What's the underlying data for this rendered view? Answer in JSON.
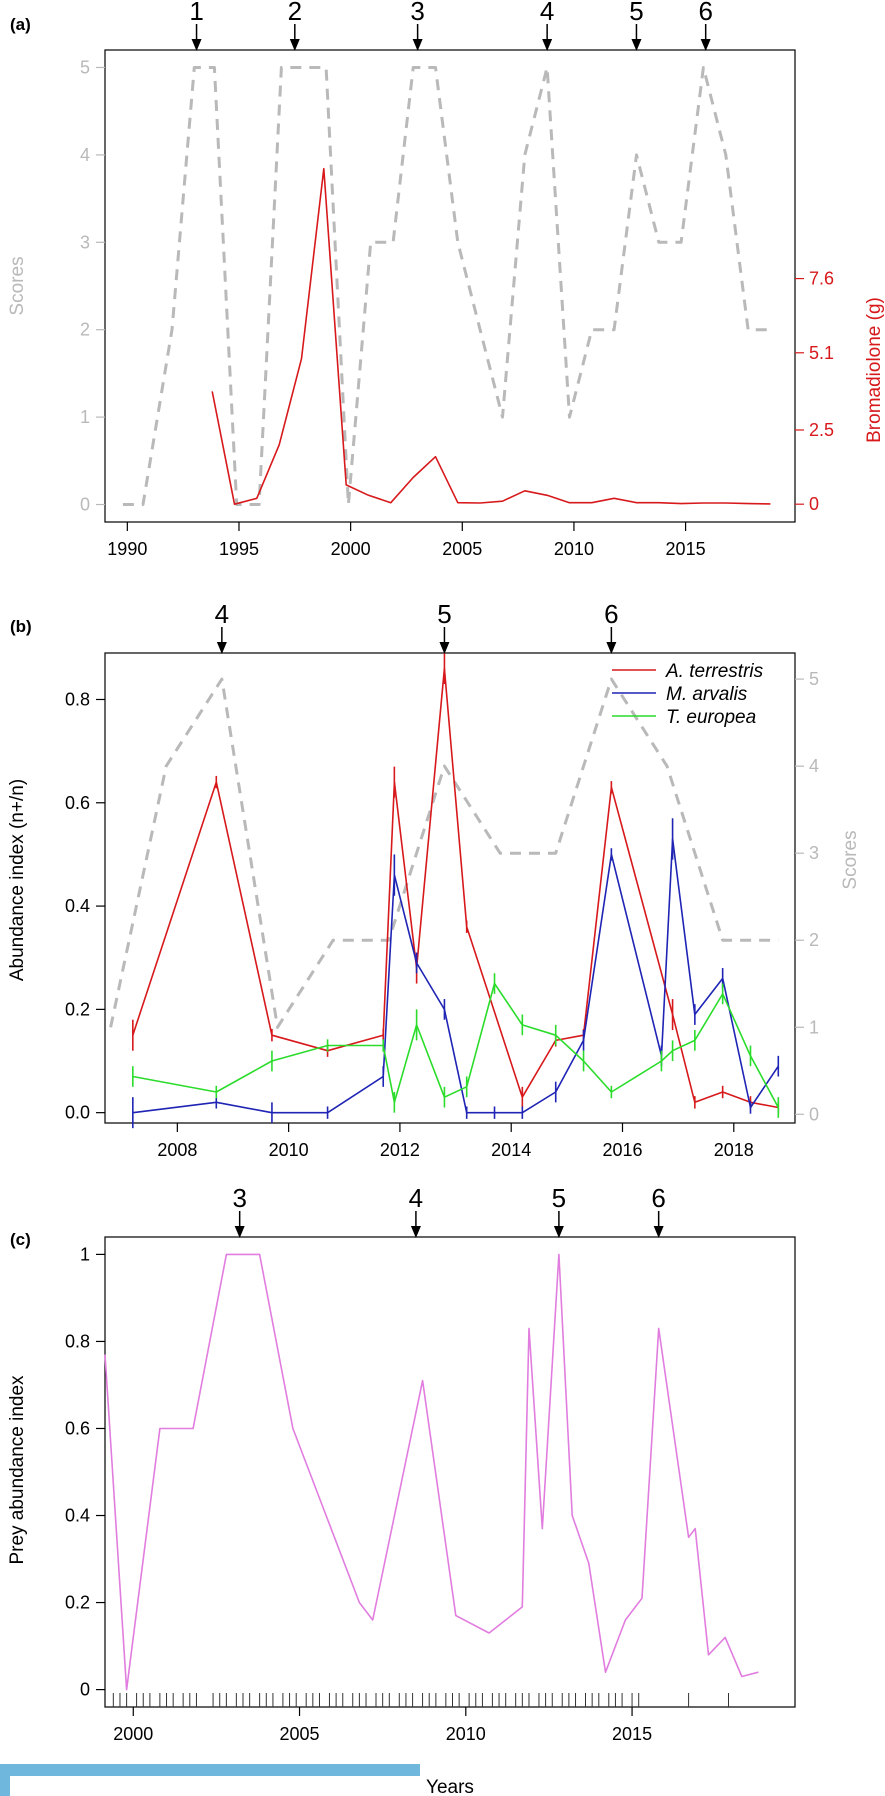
{
  "colors": {
    "axis": "#000000",
    "scores": "#b9b9b9",
    "bromadiolone": "#d7191c",
    "a_terrestris": "#d7191c",
    "m_arvalis": "#1f24b4",
    "t_europea": "#2bdc2b",
    "prey": "#e17ddf",
    "bar": "#6fb7dc"
  },
  "chart_data": [
    {
      "panel": "(a)",
      "type": "line",
      "ylabel": "Scores",
      "y2label": "Bromadiolone (g)",
      "xlim": [
        1989,
        2019.9
      ],
      "ylim": [
        -0.2,
        5.2
      ],
      "y2lim": [
        -0.6,
        15.3
      ],
      "x_ticks": [
        1990,
        1995,
        2000,
        2005,
        2010,
        2015
      ],
      "y_ticks": [
        0,
        1,
        2,
        3,
        4,
        5
      ],
      "y2_ticks": [
        0,
        2.5,
        5.1,
        7.6
      ],
      "peaks": [
        {
          "label": "1",
          "x": 1993.1
        },
        {
          "label": "2",
          "x": 1997.5
        },
        {
          "label": "3",
          "x": 2003.0
        },
        {
          "label": "4",
          "x": 2008.8
        },
        {
          "label": "5",
          "x": 2012.8
        },
        {
          "label": "6",
          "x": 2015.9
        }
      ],
      "series": [
        {
          "key": "scores",
          "axis": "y",
          "style": "dashed",
          "x": [
            1989.8,
            1990.7,
            1992.0,
            1993.0,
            1993.9,
            1994.9,
            1995.9,
            1996.9,
            1997.9,
            1998.9,
            1999.9,
            2000.9,
            2001.9,
            2002.8,
            2003.8,
            2004.8,
            2005.8,
            2006.8,
            2007.8,
            2008.8,
            2009.8,
            2010.8,
            2011.8,
            2012.8,
            2013.8,
            2014.8,
            2015.8,
            2016.8,
            2017.8,
            2018.8
          ],
          "y": [
            0,
            0,
            2,
            5,
            5,
            0,
            0,
            5,
            5,
            5,
            0,
            3,
            3,
            5,
            5,
            3,
            2,
            1,
            4,
            5,
            1,
            2,
            2,
            4,
            3,
            3,
            5,
            4,
            2,
            2
          ]
        },
        {
          "key": "bromadiolone",
          "axis": "y2",
          "style": "solid",
          "x": [
            1993.8,
            1994.8,
            1995.8,
            1996.8,
            1997.8,
            1998.8,
            1999.8,
            2000.8,
            2001.8,
            2002.8,
            2003.8,
            2004.8,
            2005.8,
            2006.8,
            2007.8,
            2008.8,
            2009.8,
            2010.8,
            2011.8,
            2012.8,
            2013.8,
            2014.8,
            2015.8,
            2016.8,
            2017.8,
            2018.8
          ],
          "y": [
            3.8,
            0.0,
            0.2,
            2.0,
            4.9,
            11.3,
            0.65,
            0.3,
            0.05,
            0.9,
            1.6,
            0.05,
            0.04,
            0.1,
            0.45,
            0.3,
            0.05,
            0.05,
            0.2,
            0.05,
            0.05,
            0.02,
            0.04,
            0.04,
            0.02,
            0.01
          ]
        }
      ]
    },
    {
      "panel": "(b)",
      "type": "line",
      "ylabel": "Abundance index (n+/n)",
      "y2label": "Scores",
      "xlim": [
        2006.7,
        2019.1
      ],
      "ylim": [
        -0.02,
        0.89
      ],
      "y2lim": [
        -0.1,
        5.3
      ],
      "x_ticks": [
        2008,
        2010,
        2012,
        2014,
        2016,
        2018
      ],
      "y_ticks": [
        0.0,
        0.2,
        0.4,
        0.6,
        0.8
      ],
      "y2_ticks": [
        0,
        1,
        2,
        3,
        4,
        5
      ],
      "peaks": [
        {
          "label": "4",
          "x": 2008.8
        },
        {
          "label": "5",
          "x": 2012.8
        },
        {
          "label": "6",
          "x": 2015.8
        }
      ],
      "legend": {
        "placement": "top-right",
        "entries": [
          {
            "key": "a_terrestris",
            "name": "A. terrestris"
          },
          {
            "key": "m_arvalis",
            "name": "M. arvalis"
          },
          {
            "key": "t_europea",
            "name": "T. europea"
          }
        ]
      },
      "series": [
        {
          "key": "scores",
          "axis": "y2",
          "style": "dashed",
          "x": [
            2006.8,
            2007.8,
            2008.8,
            2009.8,
            2010.8,
            2011.8,
            2012.8,
            2013.8,
            2014.8,
            2015.8,
            2016.8,
            2017.8,
            2018.8
          ],
          "y": [
            1,
            4,
            5,
            1,
            2,
            2,
            4,
            3,
            3,
            5,
            4,
            2,
            2
          ]
        },
        {
          "key": "a_terrestris",
          "axis": "y",
          "style": "solid",
          "name": "A. terrestris",
          "x": [
            2007.2,
            2008.7,
            2009.7,
            2010.7,
            2011.7,
            2011.9,
            2012.3,
            2012.8,
            2013.2,
            2014.2,
            2014.8,
            2015.3,
            2015.8,
            2016.9,
            2017.3,
            2017.8,
            2018.3,
            2018.8
          ],
          "y": [
            0.15,
            0.64,
            0.15,
            0.12,
            0.15,
            0.64,
            0.28,
            0.86,
            0.36,
            0.03,
            0.14,
            0.15,
            0.63,
            0.19,
            0.02,
            0.04,
            0.02,
            0.01
          ],
          "err": [
            0.03,
            0.01,
            0.01,
            0.01,
            0.01,
            0.03,
            0.03,
            0.03,
            0.0,
            0.02,
            0.01,
            0.0,
            0.0,
            0.03,
            0.01,
            0.01,
            0.0,
            0.0
          ]
        },
        {
          "key": "m_arvalis",
          "axis": "y",
          "style": "solid",
          "name": "M. arvalis",
          "x": [
            2007.2,
            2008.7,
            2009.7,
            2010.7,
            2011.7,
            2011.9,
            2012.3,
            2012.8,
            2013.2,
            2013.7,
            2014.2,
            2014.8,
            2015.3,
            2015.8,
            2016.7,
            2016.9,
            2017.3,
            2017.8,
            2018.3,
            2018.8
          ],
          "y": [
            0.0,
            0.02,
            0.0,
            0.0,
            0.07,
            0.46,
            0.29,
            0.2,
            0.0,
            0.0,
            0.0,
            0.04,
            0.14,
            0.5,
            0.11,
            0.53,
            0.19,
            0.26,
            0.01,
            0.09
          ],
          "err": [
            0.03,
            0.01,
            0.02,
            0.0,
            0.02,
            0.04,
            0.02,
            0.02,
            0.01,
            0.01,
            0.01,
            0.02,
            0.02,
            0.0,
            0.02,
            0.04,
            0.02,
            0.02,
            0.01,
            0.02
          ]
        },
        {
          "key": "t_europea",
          "axis": "y",
          "style": "solid",
          "name": "T. europea",
          "x": [
            2007.2,
            2008.7,
            2009.7,
            2010.7,
            2011.7,
            2011.9,
            2012.3,
            2012.8,
            2013.2,
            2013.7,
            2014.2,
            2014.8,
            2015.3,
            2015.8,
            2016.7,
            2016.9,
            2017.3,
            2017.8,
            2018.3,
            2018.8
          ],
          "y": [
            0.07,
            0.04,
            0.1,
            0.13,
            0.13,
            0.02,
            0.17,
            0.03,
            0.05,
            0.25,
            0.17,
            0.15,
            0.1,
            0.04,
            0.1,
            0.12,
            0.14,
            0.23,
            0.11,
            0.01
          ],
          "err": [
            0.02,
            0.01,
            0.02,
            0.01,
            0.01,
            0.02,
            0.03,
            0.02,
            0.02,
            0.02,
            0.02,
            0.02,
            0.02,
            0.0,
            0.02,
            0.02,
            0.02,
            0.02,
            0.02,
            0.02
          ]
        }
      ]
    },
    {
      "panel": "(c)",
      "type": "line",
      "ylabel": "Prey abundance index",
      "xlabel": "Years",
      "xlim": [
        1999.15,
        2019.9
      ],
      "ylim": [
        -0.04,
        1.04
      ],
      "x_ticks": [
        2000,
        2005,
        2010,
        2015
      ],
      "y_ticks": [
        0,
        0.2,
        0.4,
        0.6,
        0.8,
        1
      ],
      "peaks": [
        {
          "label": "3",
          "x": 2003.2
        },
        {
          "label": "4",
          "x": 2008.5
        },
        {
          "label": "5",
          "x": 2012.8
        },
        {
          "label": "6",
          "x": 2015.8
        }
      ],
      "series": [
        {
          "key": "prey",
          "axis": "y",
          "style": "solid",
          "x": [
            1999.15,
            1999.8,
            2000.8,
            2001.8,
            2002.8,
            2003.8,
            2004.8,
            2005.8,
            2006.8,
            2007.2,
            2008.7,
            2009.7,
            2010.7,
            2011.7,
            2011.9,
            2012.3,
            2012.8,
            2013.2,
            2013.7,
            2014.2,
            2014.8,
            2015.3,
            2015.8,
            2016.7,
            2016.9,
            2017.3,
            2017.8,
            2018.3,
            2018.8
          ],
          "y": [
            0.77,
            0.0,
            0.6,
            0.6,
            1.0,
            1.0,
            0.6,
            0.4,
            0.2,
            0.16,
            0.71,
            0.17,
            0.13,
            0.19,
            0.83,
            0.37,
            1.0,
            0.4,
            0.29,
            0.04,
            0.16,
            0.21,
            0.83,
            0.35,
            0.37,
            0.08,
            0.12,
            0.03,
            0.04
          ]
        }
      ],
      "rug_x": [
        1999.4,
        1999.6,
        1999.8,
        2000.1,
        2000.3,
        2000.5,
        2000.8,
        2001.0,
        2001.2,
        2001.5,
        2001.7,
        2001.9,
        2002.4,
        2002.6,
        2002.8,
        2003.1,
        2003.3,
        2003.5,
        2003.8,
        2004.0,
        2004.2,
        2004.5,
        2004.7,
        2004.9,
        2005.2,
        2005.4,
        2005.6,
        2005.9,
        2006.1,
        2006.3,
        2006.6,
        2006.8,
        2007.0,
        2007.3,
        2007.5,
        2007.7,
        2008.0,
        2008.2,
        2008.4,
        2008.7,
        2008.9,
        2009.1,
        2009.4,
        2009.6,
        2009.8,
        2010.1,
        2010.3,
        2010.5,
        2010.8,
        2011.0,
        2011.2,
        2011.5,
        2011.7,
        2011.9,
        2012.2,
        2012.4,
        2012.6,
        2012.9,
        2013.1,
        2013.3,
        2013.6,
        2013.8,
        2014.0,
        2014.3,
        2014.5,
        2014.7,
        2015.0,
        2015.2,
        2016.7,
        2017.9
      ]
    }
  ]
}
